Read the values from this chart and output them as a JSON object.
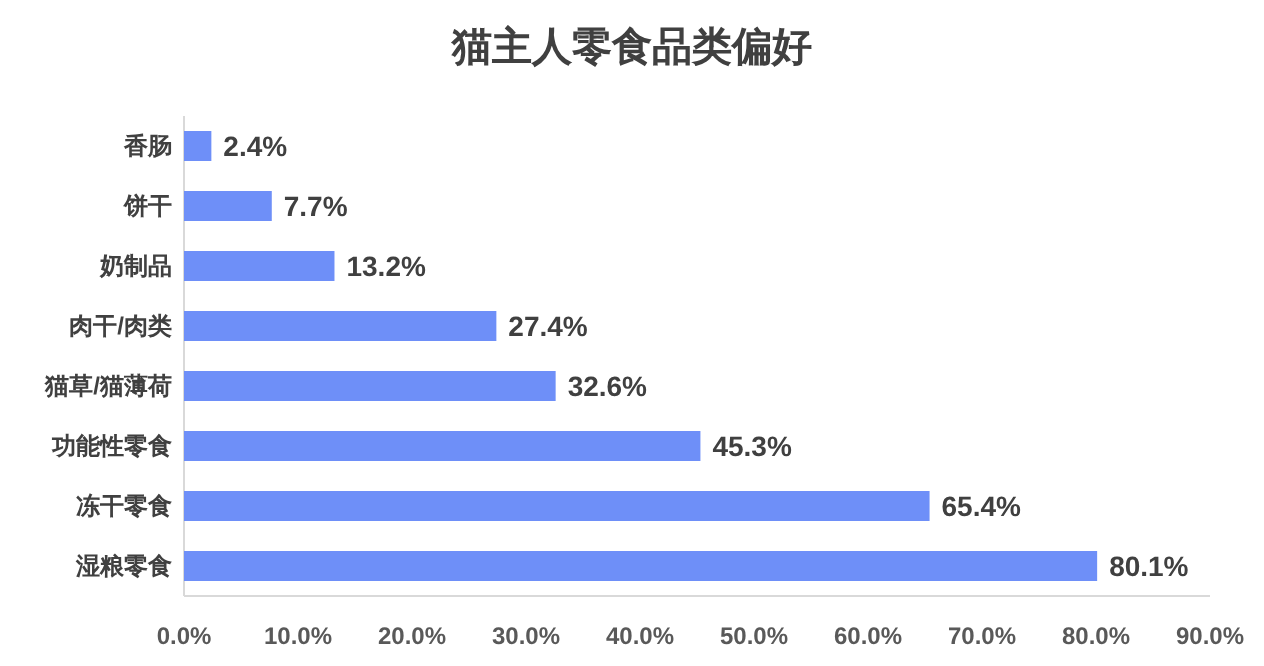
{
  "chart_data": {
    "type": "bar",
    "orientation": "horizontal",
    "title": "猫主人零食品类偏好",
    "categories": [
      "香肠",
      "饼干",
      "奶制品",
      "肉干/肉类",
      "猫草/猫薄荷",
      "功能性零食",
      "冻干零食",
      "湿粮零食"
    ],
    "values": [
      2.4,
      7.7,
      13.2,
      27.4,
      32.6,
      45.3,
      65.4,
      80.1
    ],
    "value_labels": [
      "2.4%",
      "7.7%",
      "13.2%",
      "27.4%",
      "32.6%",
      "45.3%",
      "65.4%",
      "80.1%"
    ],
    "color": "#6e8ff8",
    "xlim": [
      0,
      90
    ],
    "xticks": [
      {
        "value": 0,
        "label": "0.0%"
      },
      {
        "value": 10,
        "label": "10.0%"
      },
      {
        "value": 20,
        "label": "20.0%"
      },
      {
        "value": 30,
        "label": "30.0%"
      },
      {
        "value": 40,
        "label": "40.0%"
      },
      {
        "value": 50,
        "label": "50.0%"
      },
      {
        "value": 60,
        "label": "60.0%"
      },
      {
        "value": 70,
        "label": "70.0%"
      },
      {
        "value": 80,
        "label": "80.0%"
      },
      {
        "value": 90,
        "label": "90.0%"
      }
    ],
    "grid": false
  }
}
